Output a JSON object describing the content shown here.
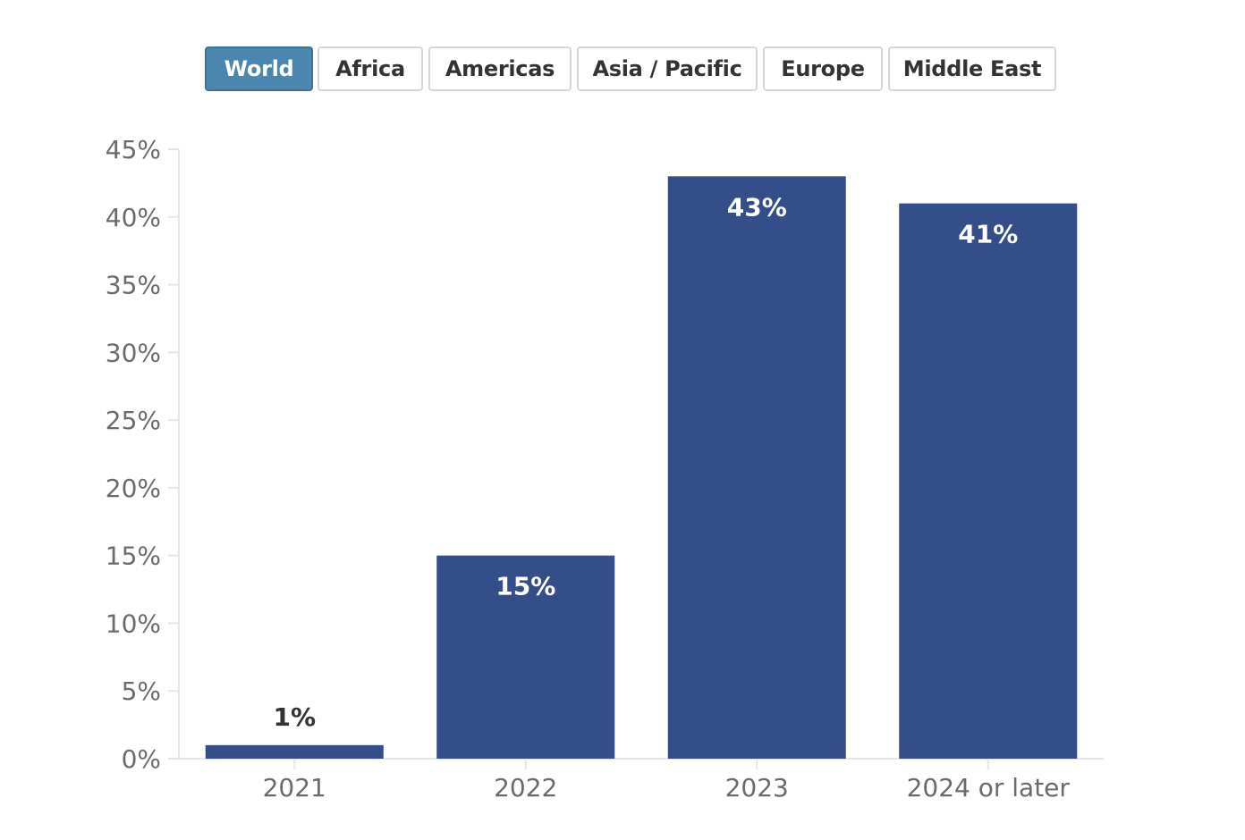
{
  "filters": {
    "tabs": [
      {
        "label": "World",
        "active": true
      },
      {
        "label": "Africa",
        "active": false
      },
      {
        "label": "Americas",
        "active": false
      },
      {
        "label": "Asia / Pacific",
        "active": false
      },
      {
        "label": "Europe",
        "active": false
      },
      {
        "label": "Middle East",
        "active": false
      }
    ]
  },
  "colors": {
    "bar": "#344e89",
    "axis": "#e6e6e6",
    "label_inside": "#ffffff",
    "label_outside": "#333333"
  },
  "chart_data": {
    "type": "bar",
    "title": "",
    "xlabel": "",
    "ylabel": "",
    "categories": [
      "2021",
      "2022",
      "2023",
      "2024 or later"
    ],
    "values": [
      1,
      15,
      43,
      41
    ],
    "value_labels": [
      "1%",
      "15%",
      "43%",
      "41%"
    ],
    "ylim": [
      0,
      45
    ],
    "yticks": [
      0,
      5,
      10,
      15,
      20,
      25,
      30,
      35,
      40,
      45
    ],
    "ytick_labels": [
      "0%",
      "5%",
      "10%",
      "15%",
      "20%",
      "25%",
      "30%",
      "35%",
      "40%",
      "45%"
    ],
    "grid": false,
    "legend": "none"
  }
}
